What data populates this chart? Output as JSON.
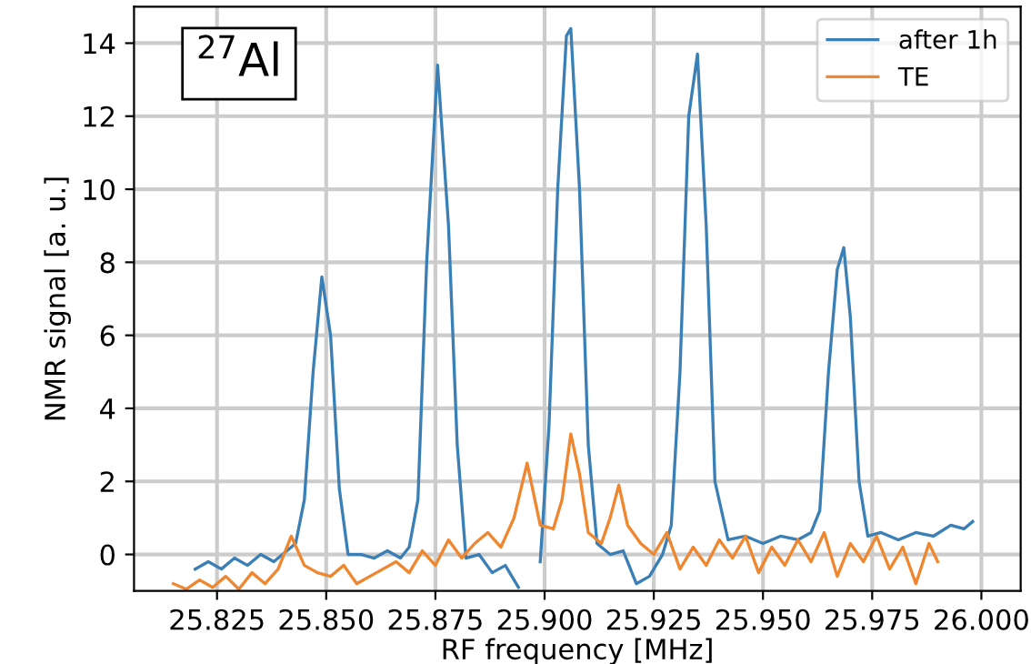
{
  "chart_data": {
    "type": "line",
    "xlabel": "RF frequency [MHz]",
    "ylabel": "NMR signal [a. u.]",
    "annotations": [
      "$^{27}$Al"
    ],
    "xlim": [
      25.806,
      26.009
    ],
    "ylim": [
      -1.0,
      15.0
    ],
    "xticks": [
      {
        "value": 25.825,
        "label": "25.825"
      },
      {
        "value": 25.85,
        "label": "25.850"
      },
      {
        "value": 25.875,
        "label": "25.875"
      },
      {
        "value": 25.9,
        "label": "25.900"
      },
      {
        "value": 25.925,
        "label": "25.925"
      },
      {
        "value": 25.95,
        "label": "25.950"
      },
      {
        "value": 25.975,
        "label": "25.975"
      },
      {
        "value": 26.0,
        "label": "26.000"
      }
    ],
    "yticks": [
      0,
      2,
      4,
      6,
      8,
      10,
      12,
      14
    ],
    "grid": true,
    "legend": "top right",
    "line_style": "solid",
    "marker": "none",
    "series": [
      {
        "name": "after 1h",
        "color": "#3a7fb5",
        "x": [
          25.82,
          25.823,
          25.826,
          25.829,
          25.832,
          25.835,
          25.838,
          25.841,
          25.843,
          25.845,
          25.847,
          25.849,
          25.851,
          25.853,
          25.855,
          25.858,
          25.861,
          25.864,
          25.867,
          25.869,
          25.871,
          25.873,
          25.8755,
          25.878,
          25.88,
          25.882,
          25.885,
          25.888,
          25.891,
          25.894,
          25.897,
          25.899,
          25.901,
          25.903,
          25.905,
          25.906,
          25.908,
          25.91,
          25.912,
          25.915,
          25.918,
          25.921,
          25.924,
          25.927,
          25.929,
          25.931,
          25.933,
          25.935,
          25.937,
          25.939,
          25.942,
          25.946,
          25.95,
          25.954,
          25.958,
          25.961,
          25.963,
          25.965,
          25.967,
          25.9685,
          25.97,
          25.972,
          25.974,
          25.977,
          25.981,
          25.985,
          25.989,
          25.993,
          25.996,
          25.998
        ],
        "values": [
          -0.4,
          -0.2,
          -0.4,
          -0.1,
          -0.3,
          0.0,
          -0.2,
          0.1,
          0.3,
          1.5,
          5.0,
          7.6,
          6.0,
          1.8,
          0.0,
          0.0,
          -0.1,
          0.1,
          -0.1,
          0.2,
          1.5,
          8.0,
          13.4,
          9.0,
          3.0,
          -0.1,
          0.0,
          -0.5,
          -0.3,
          -0.9,
          null,
          -0.2,
          3.5,
          10.0,
          14.2,
          14.4,
          10.0,
          3.0,
          0.3,
          0.0,
          0.1,
          -0.8,
          -0.6,
          0.0,
          0.8,
          5.0,
          12.0,
          13.7,
          9.0,
          2.0,
          0.4,
          0.5,
          0.3,
          0.5,
          0.4,
          0.6,
          1.2,
          5.0,
          7.8,
          8.4,
          6.5,
          2.0,
          0.5,
          0.6,
          0.4,
          0.6,
          0.5,
          0.8,
          0.7,
          0.9
        ]
      },
      {
        "name": "TE",
        "color": "#ef8630",
        "x": [
          25.815,
          25.818,
          25.821,
          25.824,
          25.827,
          25.83,
          25.833,
          25.836,
          25.839,
          25.842,
          25.845,
          25.848,
          25.851,
          25.854,
          25.857,
          25.86,
          25.863,
          25.866,
          25.869,
          25.872,
          25.875,
          25.878,
          25.881,
          25.884,
          25.887,
          25.89,
          25.893,
          25.896,
          25.899,
          25.902,
          25.904,
          25.906,
          25.908,
          25.91,
          25.913,
          25.915,
          25.917,
          25.919,
          25.922,
          25.925,
          25.928,
          25.931,
          25.934,
          25.937,
          25.94,
          25.943,
          25.946,
          25.949,
          25.952,
          25.955,
          25.958,
          25.961,
          25.964,
          25.967,
          25.97,
          25.973,
          25.976,
          25.979,
          25.982,
          25.985,
          25.988,
          25.99
        ],
        "values": [
          -0.8,
          -0.95,
          -0.7,
          -0.9,
          -0.6,
          -0.95,
          -0.5,
          -0.8,
          -0.4,
          0.5,
          -0.3,
          -0.5,
          -0.6,
          -0.3,
          -0.8,
          -0.6,
          -0.4,
          -0.2,
          -0.5,
          0.1,
          -0.3,
          0.4,
          -0.1,
          0.3,
          0.6,
          0.2,
          1.0,
          2.5,
          0.8,
          0.7,
          1.5,
          3.3,
          2.2,
          0.6,
          0.3,
          1.0,
          1.9,
          0.8,
          0.3,
          0.0,
          0.6,
          -0.4,
          0.2,
          -0.3,
          0.4,
          -0.1,
          0.5,
          -0.5,
          0.2,
          -0.3,
          0.4,
          -0.2,
          0.6,
          -0.6,
          0.3,
          -0.2,
          0.5,
          -0.4,
          0.2,
          -0.8,
          0.3,
          -0.2
        ]
      }
    ]
  }
}
